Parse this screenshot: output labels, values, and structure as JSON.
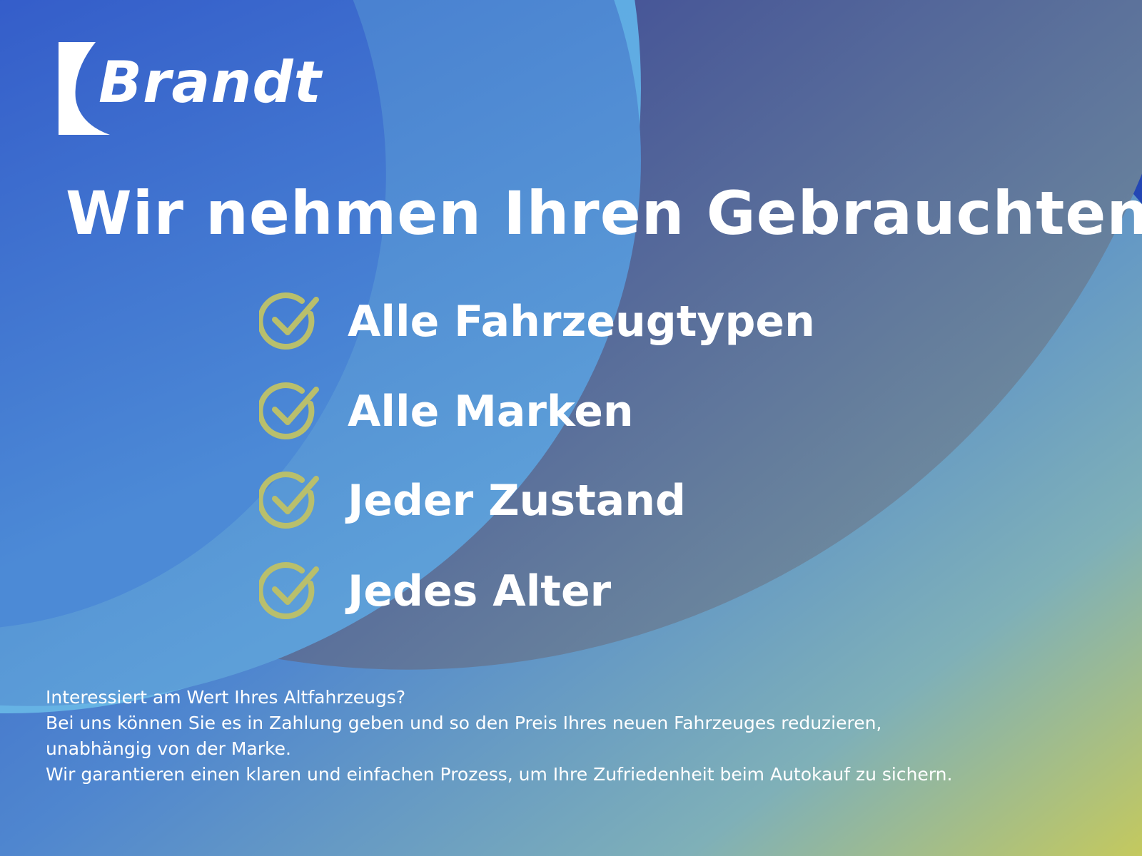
{
  "colors": {
    "accent_check": "#b9bf6c",
    "deep_blue": "#1a2fb5",
    "light_blue": "#62b3e6",
    "olive": "#bcc765"
  },
  "logo": {
    "text": "Brandt"
  },
  "headline": "Wir nehmen Ihren Gebrauchten!",
  "features": [
    {
      "icon": "check-circle-icon",
      "label": "Alle Fahrzeugtypen"
    },
    {
      "icon": "check-circle-icon",
      "label": "Alle Marken"
    },
    {
      "icon": "check-circle-icon",
      "label": "Jeder Zustand"
    },
    {
      "icon": "check-circle-icon",
      "label": "Jedes Alter"
    }
  ],
  "body_lines": [
    "Interessiert am Wert Ihres Altfahrzeugs?",
    "Bei uns können Sie es in Zahlung geben und so den Preis Ihres neuen Fahrzeuges reduzieren,",
    "unabhängig von der Marke.",
    "Wir garantieren einen klaren und einfachen Prozess, um Ihre Zufriedenheit beim Autokauf zu sichern."
  ]
}
